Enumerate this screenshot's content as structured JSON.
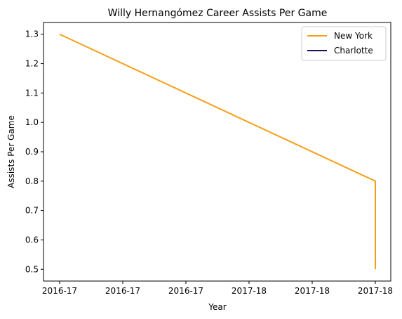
{
  "chart_data": {
    "type": "line",
    "title": "Willy Hernangómez Career Assists Per Game",
    "xlabel": "Year",
    "ylabel": "Assists Per Game",
    "x_tick_labels": [
      "2016-17",
      "2016-17",
      "2016-17",
      "2017-18",
      "2017-18",
      "2017-18"
    ],
    "y_ticks": [
      0.5,
      0.6,
      0.7,
      0.8,
      0.9,
      1.0,
      1.1,
      1.2,
      1.3
    ],
    "y_tick_labels": [
      "0.5",
      "0.6",
      "0.7",
      "0.8",
      "0.9",
      "1.0",
      "1.1",
      "1.2",
      "1.3"
    ],
    "ylim": [
      0.46,
      1.34
    ],
    "grid": false,
    "legend_position": "top-right",
    "series": [
      {
        "name": "New York",
        "color": "#f5a01a",
        "x": [
          "2016-17",
          "2017-18",
          "2017-18"
        ],
        "y": [
          1.3,
          0.8,
          0.5
        ]
      },
      {
        "name": "Charlotte",
        "color": "#1d1160",
        "x": [],
        "y": []
      }
    ]
  }
}
